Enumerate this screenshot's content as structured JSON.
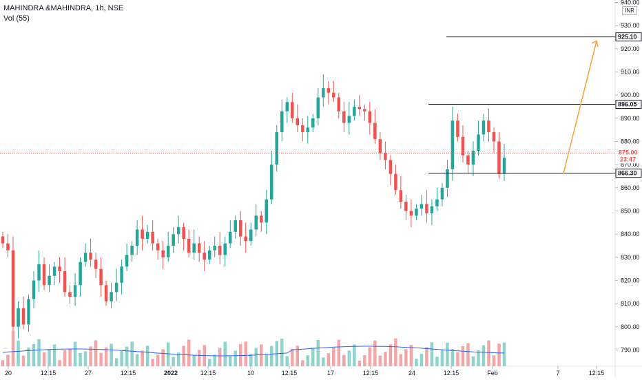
{
  "header": {
    "title": "MAHINDRA &MAHINDRA, 1h, NSE",
    "volume_label": "Vol (55)",
    "currency": "INR"
  },
  "chart_data": {
    "type": "candlestick",
    "symbol": "MAHINDRA &MAHINDRA",
    "interval": "1h",
    "exchange": "NSE",
    "y_axis": {
      "ticks": [
        790,
        800,
        810,
        820,
        830,
        840,
        850,
        860,
        870,
        880,
        890,
        900,
        910,
        920,
        930,
        940
      ],
      "tick_labels": [
        "790.00",
        "800.00",
        "810.00",
        "820.00",
        "830.00",
        "840.00",
        "850.00",
        "860.00",
        "870.00",
        "880.00",
        "890.00",
        "900.00",
        "910.00",
        "920.00",
        "930.00",
        "940.00"
      ],
      "range": [
        786,
        940
      ]
    },
    "x_axis_labels": [
      "20",
      "12:15",
      "27",
      "12:15",
      "2022",
      "12:15",
      "10",
      "12:15",
      "17",
      "12:15",
      "24",
      "12:15",
      "Feb",
      "7",
      "12:15"
    ],
    "x_axis_bold": [
      "2022"
    ],
    "horizontal_lines": [
      {
        "price": 925.1,
        "label": "925.10"
      },
      {
        "price": 896.05,
        "label": "896.05"
      },
      {
        "price": 866.3,
        "label": "866.30"
      }
    ],
    "current_price": {
      "price": 875.0,
      "label": "875.00",
      "countdown": "23:47"
    },
    "projection_arrow": {
      "from": 866.3,
      "to": 925.1
    },
    "series": [
      {
        "name": "Price",
        "kind": "ohlc",
        "close_path": [
          836,
          833,
          800,
          808,
          801,
          812,
          820,
          827,
          818,
          822,
          826,
          824,
          815,
          813,
          818,
          828,
          832,
          829,
          825,
          818,
          811,
          815,
          819,
          826,
          831,
          835,
          842,
          838,
          841,
          836,
          833,
          830,
          835,
          840,
          843,
          838,
          832,
          836,
          832,
          829,
          833,
          835,
          831,
          836,
          841,
          846,
          839,
          837,
          842,
          848,
          845,
          855,
          870,
          884,
          893,
          897,
          890,
          887,
          884,
          886,
          890,
          899,
          903,
          901,
          899,
          893,
          888,
          891,
          895,
          894,
          893,
          888,
          881,
          875,
          872,
          866,
          859,
          854,
          850,
          848,
          851,
          853,
          849,
          852,
          855,
          860,
          868,
          889,
          882,
          874,
          870,
          876,
          883,
          889,
          884,
          880,
          866,
          873
        ]
      },
      {
        "name": "Vol",
        "kind": "volume",
        "ma_label": "55"
      }
    ],
    "colors": {
      "up": "#26a69a",
      "down": "#ef5350",
      "vol_up": "#8fd3cc",
      "vol_down": "#f4a6a6",
      "ma": "#2962ff",
      "arrow": "#f7a13b",
      "lines": "#131722",
      "price_line": "#ef5350"
    }
  }
}
